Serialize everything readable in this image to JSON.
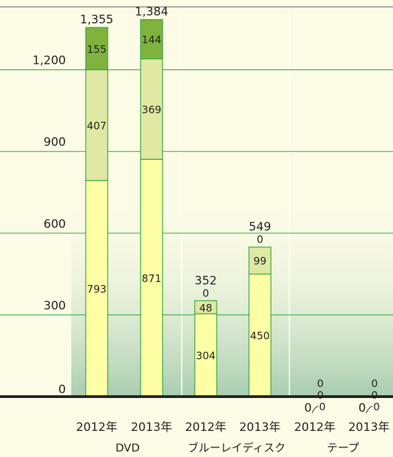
{
  "chart_data": {
    "type": "bar",
    "stacked": true,
    "groups": [
      "DVD",
      "ブルーレイディスク",
      "テープ"
    ],
    "categories": [
      "2012年",
      "2013年",
      "2012年",
      "2013年",
      "2012年",
      "2013年"
    ],
    "series": [
      {
        "values": [
          793,
          871,
          304,
          450,
          0,
          0
        ],
        "color": "#ffffa6"
      },
      {
        "values": [
          407,
          369,
          48,
          99,
          0,
          0
        ],
        "color": "#dfe9a3"
      },
      {
        "values": [
          155,
          144,
          0,
          0,
          0,
          0
        ],
        "color": "#7fb33d"
      }
    ],
    "segment_labels": [
      [
        "793",
        "871",
        "304",
        "450",
        "0",
        "0"
      ],
      [
        "407",
        "369",
        "48",
        "99",
        "0",
        "0"
      ],
      [
        "155",
        "144",
        "0",
        "0",
        "0",
        "0"
      ]
    ],
    "totals": [
      "1,355",
      "1,384",
      "352",
      "549",
      "0",
      "0"
    ],
    "y_ticks": [
      0,
      300,
      600,
      900,
      1200
    ],
    "y_tick_labels": [
      "0",
      "300",
      "600",
      "900",
      "1,200"
    ],
    "ylim": [
      0,
      1450
    ],
    "grid": true,
    "colors": {
      "background": "#fbfbe6",
      "gradient_bottom": "#a8ccb0",
      "gridline": "#3cae48",
      "bar_border": "#2fa33e",
      "axis": "#222222"
    }
  }
}
